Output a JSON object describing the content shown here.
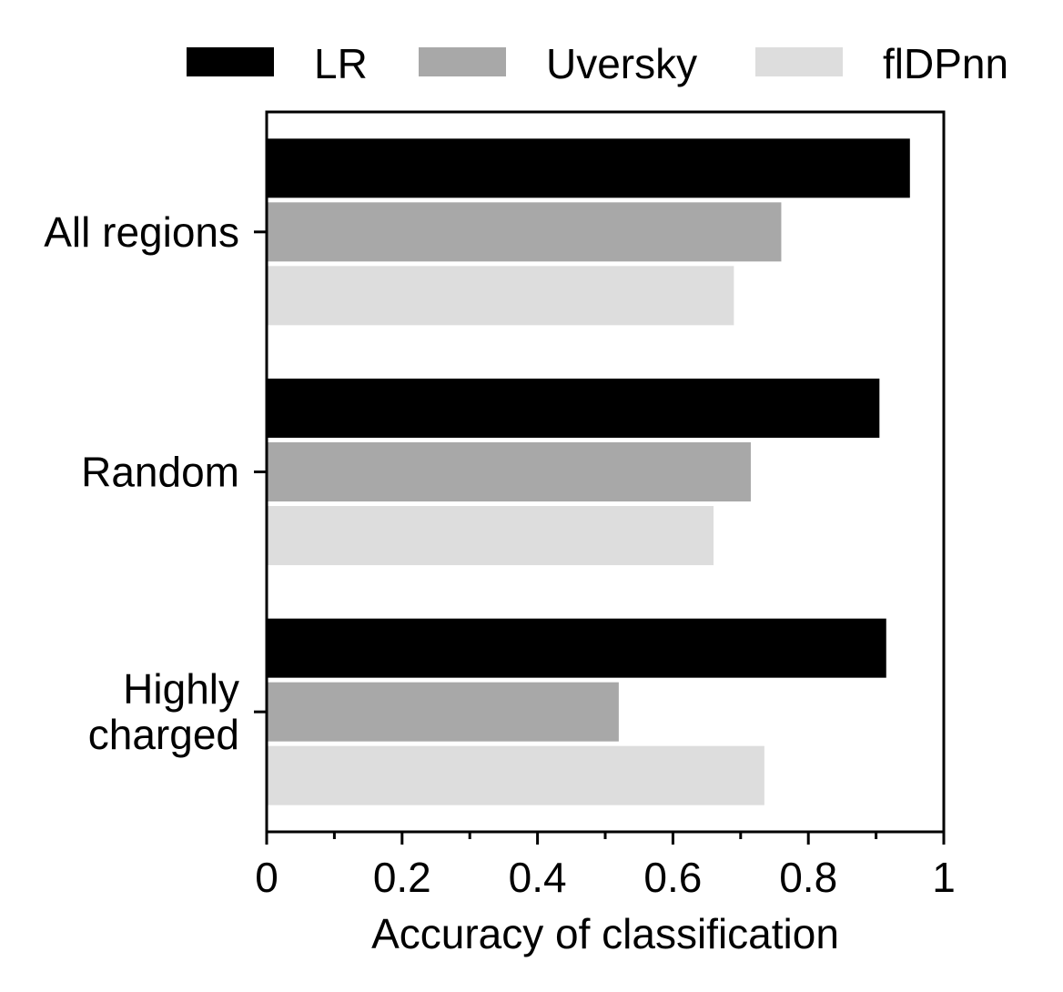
{
  "chart_data": {
    "type": "bar",
    "orientation": "horizontal",
    "title": "",
    "xlabel": "Accuracy of classification",
    "ylabel": "",
    "xlim": [
      0,
      1
    ],
    "x_ticks": [
      "0",
      "0.2",
      "0.4",
      "0.6",
      "0.8",
      "1"
    ],
    "categories": [
      {
        "lines": [
          "All regions"
        ]
      },
      {
        "lines": [
          "Random"
        ]
      },
      {
        "lines": [
          "Highly",
          "charged"
        ]
      }
    ],
    "series": [
      {
        "name": "LR",
        "color": "#000000",
        "values": [
          0.95,
          0.905,
          0.915
        ]
      },
      {
        "name": "Uversky",
        "color": "#a8a8a8",
        "values": [
          0.76,
          0.715,
          0.52
        ]
      },
      {
        "name": "flDPnn",
        "color": "#dddddd",
        "values": [
          0.69,
          0.66,
          0.735
        ]
      }
    ],
    "legend_position": "top",
    "grid": false
  }
}
